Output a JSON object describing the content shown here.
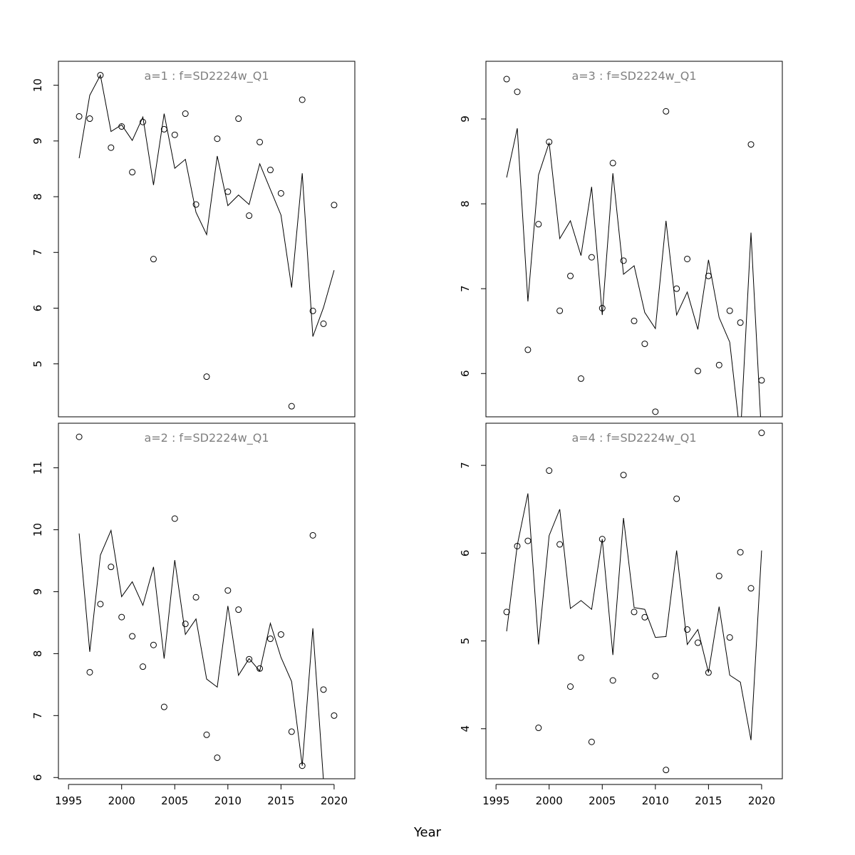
{
  "figure": {
    "xlabel": "Year"
  },
  "chart_data": [
    {
      "type": "scatter",
      "title": "a=1  :  f=SD2224w_Q1",
      "x": [
        1996,
        1997,
        1998,
        1999,
        2000,
        2001,
        2002,
        2003,
        2004,
        2005,
        2006,
        2007,
        2008,
        2009,
        2010,
        2011,
        2012,
        2013,
        2014,
        2015,
        2016,
        2017,
        2018,
        2019,
        2020
      ],
      "observed": [
        9.44,
        9.4,
        10.18,
        8.88,
        9.26,
        8.44,
        9.34,
        6.88,
        9.21,
        9.11,
        9.49,
        7.86,
        4.77,
        9.04,
        8.09,
        9.4,
        7.66,
        8.98,
        8.48,
        8.06,
        4.24,
        9.74,
        5.95,
        5.72,
        7.85
      ],
      "fitted": [
        8.69,
        9.82,
        10.18,
        9.17,
        9.29,
        9.01,
        9.43,
        8.21,
        9.49,
        8.51,
        8.67,
        7.72,
        7.32,
        8.73,
        7.84,
        8.03,
        7.86,
        8.59,
        8.13,
        7.67,
        6.37,
        8.42,
        5.49,
        6.01,
        6.68
      ],
      "xlim": [
        1994.05,
        2021.95
      ],
      "ylim": [
        4.05,
        10.43
      ],
      "xticks": [
        1995,
        2000,
        2005,
        2010,
        2015,
        2020
      ],
      "yticks": [
        5,
        6,
        7,
        8,
        9,
        10
      ],
      "show_xticks": false
    },
    {
      "type": "scatter",
      "title": "a=3  :  f=SD2224w_Q1",
      "x": [
        1996,
        1997,
        1998,
        1999,
        2000,
        2001,
        2002,
        2003,
        2004,
        2005,
        2006,
        2007,
        2008,
        2009,
        2010,
        2011,
        2012,
        2013,
        2014,
        2015,
        2016,
        2017,
        2018,
        2019,
        2020
      ],
      "observed": [
        9.47,
        9.32,
        6.28,
        7.76,
        8.73,
        6.74,
        7.15,
        5.94,
        7.37,
        6.77,
        8.48,
        7.33,
        6.62,
        6.35,
        5.55,
        9.09,
        7.0,
        7.35,
        6.03,
        7.15,
        6.1,
        6.74,
        6.6,
        8.7,
        5.92
      ],
      "fitted": [
        8.31,
        8.89,
        6.85,
        8.34,
        8.72,
        7.59,
        7.8,
        7.39,
        8.2,
        6.69,
        8.36,
        7.17,
        7.27,
        6.72,
        6.53,
        7.8,
        6.69,
        6.96,
        6.52,
        7.34,
        6.66,
        6.37,
        5.25,
        7.66,
        5.25
      ],
      "xlim": [
        1994.05,
        2021.95
      ],
      "ylim": [
        5.49,
        9.68
      ],
      "xticks": [
        1995,
        2000,
        2005,
        2010,
        2015,
        2020
      ],
      "yticks": [
        6,
        7,
        8,
        9
      ],
      "show_xticks": false
    },
    {
      "type": "scatter",
      "title": "a=2  :  f=SD2224w_Q1",
      "x": [
        1996,
        1997,
        1998,
        1999,
        2000,
        2001,
        2002,
        2003,
        2004,
        2005,
        2006,
        2007,
        2008,
        2009,
        2010,
        2011,
        2012,
        2013,
        2014,
        2015,
        2016,
        2017,
        2018,
        2019,
        2020
      ],
      "observed": [
        11.5,
        7.7,
        8.8,
        9.4,
        8.59,
        8.28,
        7.79,
        8.14,
        7.14,
        10.18,
        8.48,
        8.91,
        6.69,
        6.32,
        9.02,
        8.71,
        7.91,
        7.76,
        8.24,
        8.31,
        6.74,
        6.19,
        9.91,
        7.42,
        7.0
      ],
      "fitted": [
        9.94,
        8.03,
        9.59,
        9.99,
        8.92,
        9.16,
        8.78,
        9.4,
        7.92,
        9.51,
        8.31,
        8.56,
        7.59,
        7.46,
        8.77,
        7.65,
        7.92,
        7.72,
        8.49,
        7.94,
        7.55,
        6.19,
        8.41,
        5.95,
        5.95
      ],
      "xlim": [
        1994.05,
        2021.95
      ],
      "ylim": [
        5.98,
        11.72
      ],
      "xticks": [
        1995,
        2000,
        2005,
        2010,
        2015,
        2020
      ],
      "yticks": [
        6,
        7,
        8,
        9,
        10,
        11
      ],
      "show_xticks": true
    },
    {
      "type": "scatter",
      "title": "a=4  :  f=SD2224w_Q1",
      "x": [
        1996,
        1997,
        1998,
        1999,
        2000,
        2001,
        2002,
        2003,
        2004,
        2005,
        2006,
        2007,
        2008,
        2009,
        2010,
        2011,
        2012,
        2013,
        2014,
        2015,
        2016,
        2017,
        2018,
        2019,
        2020
      ],
      "observed": [
        5.33,
        6.08,
        6.14,
        4.01,
        6.94,
        6.1,
        4.48,
        4.81,
        3.85,
        6.16,
        4.55,
        6.89,
        5.33,
        5.27,
        4.6,
        3.53,
        6.62,
        5.13,
        4.98,
        4.64,
        5.74,
        5.04,
        6.01,
        5.6,
        7.37
      ],
      "fitted": [
        5.11,
        6.09,
        6.68,
        4.96,
        6.2,
        6.5,
        5.37,
        5.46,
        5.36,
        6.16,
        4.84,
        6.4,
        5.38,
        5.36,
        5.04,
        5.05,
        6.03,
        4.96,
        5.13,
        4.64,
        5.39,
        4.61,
        4.53,
        3.87,
        6.03
      ],
      "xlim": [
        1994.05,
        2021.95
      ],
      "ylim": [
        3.43,
        7.48
      ],
      "xticks": [
        1995,
        2000,
        2005,
        2010,
        2015,
        2020
      ],
      "yticks": [
        4,
        5,
        6,
        7
      ],
      "show_xticks": true
    }
  ]
}
